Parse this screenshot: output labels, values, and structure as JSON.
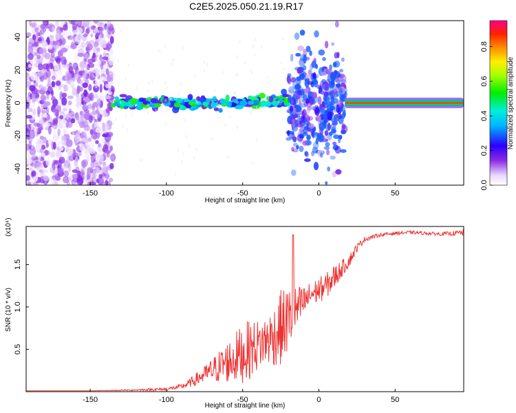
{
  "title": "C2E5.2025.050.21.19.R17",
  "colors": {
    "snr_line": "#ee3333",
    "axis": "#000000"
  },
  "chart_data": [
    {
      "type": "heatmap",
      "xlabel": "Height of straight line (km)",
      "ylabel": "Frequency (Hz)",
      "xlim": [
        -192,
        95
      ],
      "ylim": [
        -50,
        50
      ],
      "xticks": [
        "-150",
        "-100",
        "-50",
        "0",
        "50"
      ],
      "yticks": [
        "-40",
        "-20",
        "0",
        "20",
        "40"
      ],
      "colorbar": {
        "label": "Normalized spectral amplitude",
        "range": [
          0,
          0.95
        ],
        "ticks": [
          "0.0",
          "0.2",
          "0.4",
          "0.6",
          "0.8"
        ],
        "colormap": "rainbow"
      },
      "regions": [
        {
          "x": [
            -192,
            -135
          ],
          "freq": [
            -50,
            50
          ],
          "amplitude": 0.05,
          "pattern": "scattered noise"
        },
        {
          "x": [
            -135,
            -20
          ],
          "freq": [
            -3,
            8
          ],
          "amplitude": 0.3,
          "pattern": "narrow band near 0 Hz"
        },
        {
          "x": [
            -20,
            17
          ],
          "freq": [
            -35,
            35
          ],
          "amplitude": 0.15,
          "pattern": "broad spread"
        },
        {
          "x": [
            17,
            95
          ],
          "freq": [
            -3,
            3
          ],
          "amplitude": 0.9,
          "pattern": "strong steady line at 0 Hz"
        }
      ]
    },
    {
      "type": "line",
      "xlabel": "Height of straight line (km)",
      "ylabel": "SNR (10 * v/v)",
      "y_multiplier": "(x10⁴)",
      "xlim": [
        -192,
        95
      ],
      "ylim": [
        0,
        1.95
      ],
      "xticks": [
        "-150",
        "-100",
        "-50",
        "0",
        "50"
      ],
      "yticks": [
        "0.5",
        "1.0",
        "1.5"
      ],
      "series": [
        {
          "x": [
            -192,
            -150,
            -120,
            -100,
            -90,
            -85,
            -80,
            -75,
            -70,
            -65,
            -60,
            -55,
            -50,
            -45,
            -40,
            -35,
            -30,
            -25,
            -20,
            -15,
            -10,
            -5,
            0,
            5,
            10,
            15,
            20,
            25,
            30,
            40,
            50,
            60,
            70,
            80,
            90,
            95
          ],
          "values": [
            0.01,
            0.01,
            0.02,
            0.03,
            0.06,
            0.1,
            0.15,
            0.2,
            0.25,
            0.3,
            0.35,
            0.4,
            0.45,
            0.5,
            0.55,
            0.6,
            0.65,
            0.75,
            0.85,
            0.95,
            1.05,
            1.15,
            1.2,
            1.25,
            1.35,
            1.45,
            1.55,
            1.7,
            1.8,
            1.85,
            1.87,
            1.88,
            1.87,
            1.86,
            1.87,
            1.88
          ],
          "noise": [
            0,
            0,
            0.01,
            0.02,
            0.03,
            0.05,
            0.08,
            0.1,
            0.15,
            0.2,
            0.25,
            0.3,
            0.35,
            0.35,
            0.3,
            0.3,
            0.35,
            0.45,
            0.4,
            0.3,
            0.2,
            0.15,
            0.15,
            0.15,
            0.15,
            0.1,
            0.08,
            0.05,
            0.03,
            0.02,
            0.02,
            0.02,
            0.02,
            0.02,
            0.03,
            0.04
          ]
        }
      ]
    }
  ]
}
